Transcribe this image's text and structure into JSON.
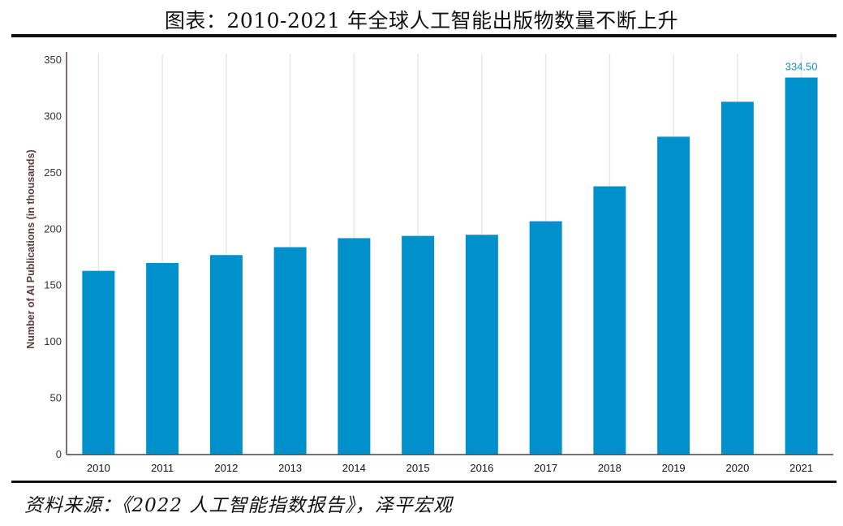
{
  "title": "图表：2010-2021 年全球人工智能出版物数量不断上升",
  "source": "资料来源：《2022 人工智能指数报告》，泽平宏观",
  "colors": {
    "bar": "#0091cd",
    "grid": "#e6e6e6",
    "axis": "#5a3b3b",
    "label": "#1a8fc9"
  },
  "chart_data": {
    "type": "bar",
    "categories": [
      "2010",
      "2011",
      "2012",
      "2013",
      "2014",
      "2015",
      "2016",
      "2017",
      "2018",
      "2019",
      "2020",
      "2021"
    ],
    "values": [
      163,
      170,
      177,
      184,
      192,
      194,
      195,
      207,
      238,
      282,
      313,
      334.5
    ],
    "data_labels": [
      {
        "category": "2021",
        "text": "334.50"
      }
    ],
    "ylabel": "Number of AI Publications (in thousands)",
    "xlabel": "",
    "ylim": [
      0,
      350
    ],
    "yticks": [
      0,
      50,
      100,
      150,
      200,
      250,
      300,
      350
    ],
    "grid": "vertical"
  }
}
